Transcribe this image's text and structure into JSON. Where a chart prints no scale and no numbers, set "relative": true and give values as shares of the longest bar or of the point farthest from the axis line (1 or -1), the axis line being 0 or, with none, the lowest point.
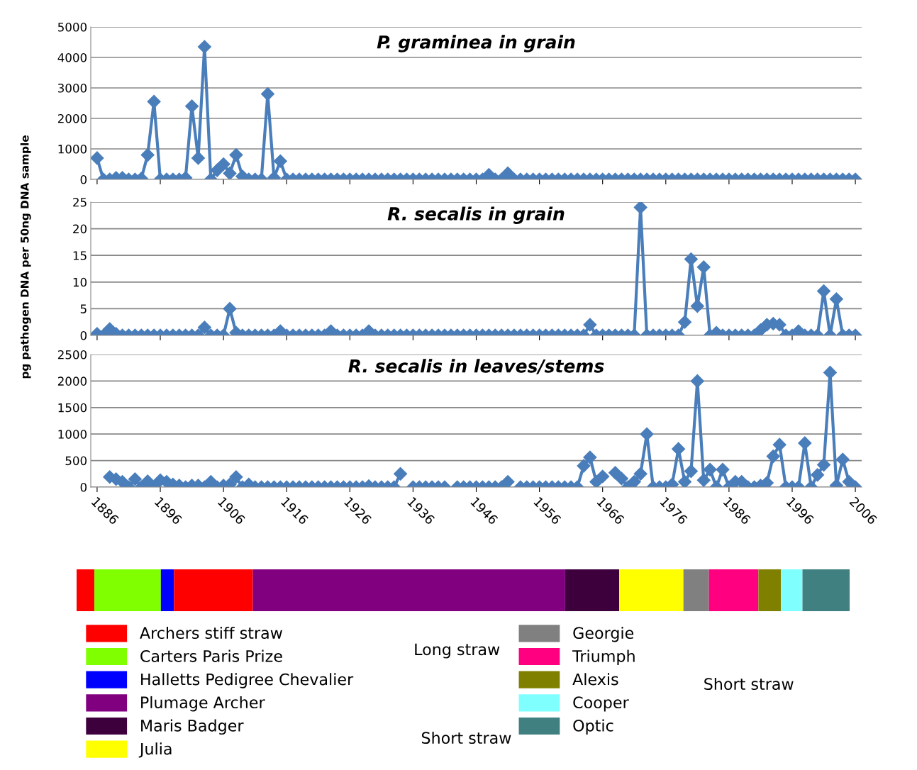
{
  "chart_data": [
    {
      "type": "line",
      "title": "P. graminea in grain",
      "marker": "diamond",
      "line_style": "solid",
      "grid": "y",
      "tick_labels": "y",
      "xlim": [
        1885,
        2007
      ],
      "xticks": [
        1886,
        1896,
        1906,
        1916,
        1926,
        1936,
        1946,
        1956,
        1966,
        1976,
        1986,
        1996,
        2006
      ],
      "ylim": [
        0,
        5000
      ],
      "yticks": [
        0,
        1000,
        2000,
        3000,
        4000,
        5000
      ],
      "series": [
        {
          "color": "#4a7ebb",
          "x": [
            1886,
            1887,
            1888,
            1889,
            1890,
            1891,
            1892,
            1893,
            1894,
            1895,
            1896,
            1897,
            1898,
            1899,
            1900,
            1901,
            1902,
            1903,
            1904,
            1905,
            1906,
            1907,
            1908,
            1909,
            1910,
            1911,
            1912,
            1913,
            1914,
            1915,
            1916,
            1917,
            1918,
            1919,
            1920,
            1921,
            1922,
            1923,
            1924,
            1925,
            1926,
            1927,
            1928,
            1929,
            1930,
            1931,
            1932,
            1933,
            1934,
            1935,
            1936,
            1937,
            1938,
            1939,
            1940,
            1941,
            1942,
            1943,
            1944,
            1945,
            1946,
            1947,
            1948,
            1949,
            1950,
            1951,
            1952,
            1953,
            1954,
            1955,
            1956,
            1957,
            1958,
            1959,
            1960,
            1961,
            1962,
            1963,
            1964,
            1965,
            1966,
            1967,
            1968,
            1969,
            1970,
            1971,
            1972,
            1973,
            1974,
            1975,
            1976,
            1977,
            1978,
            1979,
            1980,
            1981,
            1982,
            1983,
            1984,
            1985,
            1986,
            1987,
            1988,
            1989,
            1990,
            1991,
            1992,
            1993,
            1994,
            1995,
            1996,
            1997,
            1998,
            1999,
            2000,
            2001,
            2002,
            2003,
            2004,
            2005,
            2006
          ],
          "values": [
            700,
            0,
            0,
            50,
            50,
            0,
            0,
            30,
            800,
            2550,
            0,
            0,
            0,
            0,
            50,
            2400,
            700,
            4350,
            0,
            300,
            500,
            200,
            800,
            100,
            0,
            0,
            0,
            2800,
            50,
            600,
            0,
            0,
            0,
            0,
            0,
            0,
            0,
            0,
            0,
            0,
            0,
            0,
            0,
            0,
            0,
            0,
            0,
            0,
            0,
            0,
            0,
            0,
            0,
            0,
            0,
            0,
            0,
            0,
            0,
            0,
            0,
            0,
            150,
            0,
            0,
            200,
            0,
            0,
            0,
            0,
            0,
            0,
            0,
            0,
            0,
            0,
            0,
            0,
            0,
            0,
            0,
            0,
            0,
            0,
            0,
            0,
            0,
            0,
            0,
            0,
            0,
            0,
            0,
            0,
            0,
            0,
            0,
            0,
            0,
            0,
            0,
            0,
            0,
            0,
            0,
            0,
            0,
            0,
            0,
            0,
            0,
            0,
            0,
            0,
            0,
            0,
            0,
            0,
            0,
            0,
            0
          ]
        }
      ]
    },
    {
      "type": "line",
      "title": "R. secalis in grain",
      "ylabel": "pg pathogen DNA per 50ng DNA sample",
      "marker": "diamond",
      "line_style": "solid",
      "grid": "y",
      "tick_labels": "y",
      "xlim": [
        1885,
        2007
      ],
      "xticks": [
        1886,
        1896,
        1906,
        1916,
        1926,
        1936,
        1946,
        1956,
        1966,
        1976,
        1986,
        1996,
        2006
      ],
      "ylim": [
        0,
        25
      ],
      "yticks": [
        0,
        5,
        10,
        15,
        20,
        25
      ],
      "series": [
        {
          "color": "#4a7ebb",
          "x": [
            1886,
            1887,
            1888,
            1889,
            1890,
            1891,
            1892,
            1893,
            1894,
            1895,
            1896,
            1897,
            1898,
            1899,
            1900,
            1901,
            1902,
            1903,
            1904,
            1905,
            1906,
            1907,
            1908,
            1909,
            1910,
            1911,
            1912,
            1913,
            1914,
            1915,
            1916,
            1917,
            1918,
            1919,
            1920,
            1921,
            1922,
            1923,
            1924,
            1925,
            1926,
            1927,
            1928,
            1929,
            1930,
            1931,
            1932,
            1933,
            1934,
            1935,
            1936,
            1937,
            1938,
            1939,
            1940,
            1941,
            1942,
            1943,
            1944,
            1945,
            1946,
            1947,
            1948,
            1949,
            1950,
            1951,
            1952,
            1953,
            1954,
            1955,
            1956,
            1957,
            1958,
            1959,
            1960,
            1961,
            1962,
            1963,
            1964,
            1965,
            1966,
            1967,
            1968,
            1969,
            1970,
            1971,
            1972,
            1973,
            1974,
            1975,
            1976,
            1977,
            1978,
            1979,
            1980,
            1981,
            1982,
            1983,
            1984,
            1985,
            1986,
            1987,
            1988,
            1989,
            1990,
            1991,
            1992,
            1993,
            1994,
            1995,
            1996,
            1997,
            1998,
            1999,
            2000,
            2001,
            2002,
            2003,
            2004,
            2005,
            2006
          ],
          "values": [
            0.3,
            0,
            1.2,
            0.3,
            0,
            0,
            0,
            0,
            0,
            0,
            0,
            0,
            0,
            0,
            0,
            0,
            0,
            1.5,
            0,
            0,
            0,
            5,
            0.5,
            0,
            0,
            0,
            0,
            0,
            0,
            0.8,
            0,
            0,
            0,
            0,
            0,
            0,
            0,
            0.8,
            0,
            0,
            0,
            0,
            0,
            0.8,
            0,
            0,
            0,
            0,
            0,
            0,
            0,
            0,
            0,
            0,
            0,
            0,
            0,
            0,
            0,
            0,
            0,
            0,
            0,
            0,
            0,
            0,
            0,
            0,
            0,
            0,
            0,
            0,
            0,
            0,
            0,
            0,
            0,
            0,
            2,
            0,
            0,
            0,
            0,
            0,
            0,
            0,
            24,
            0,
            0,
            0,
            0,
            0,
            0,
            2.5,
            14.3,
            5.5,
            12.8,
            0,
            0.5,
            0,
            0,
            0,
            0,
            0,
            0,
            1,
            2,
            2.2,
            2,
            0,
            0,
            0.8,
            0,
            0,
            0,
            8.3,
            0,
            6.8,
            0,
            0,
            0
          ]
        }
      ]
    },
    {
      "type": "line",
      "title": "R. secalis in leaves/stems",
      "marker": "diamond",
      "line_style": "solid",
      "grid": "y",
      "xlim": [
        1885,
        2007
      ],
      "xticks": [
        1886,
        1896,
        1906,
        1916,
        1926,
        1936,
        1946,
        1956,
        1966,
        1976,
        1986,
        1996,
        2006
      ],
      "ylim": [
        0,
        2500
      ],
      "yticks": [
        0,
        500,
        1000,
        1500,
        2000,
        2500
      ],
      "series": [
        {
          "color": "#4a7ebb",
          "x": [
            1888,
            1889,
            1890,
            1891,
            1892,
            1893,
            1894,
            1895,
            1896,
            1897,
            1898,
            1899,
            1900,
            1901,
            1902,
            1903,
            1904,
            1905,
            1906,
            1907,
            1908,
            1909,
            1910,
            1911,
            1912,
            1913,
            1914,
            1915,
            1916,
            1917,
            1918,
            1919,
            1920,
            1921,
            1922,
            1923,
            1924,
            1925,
            1926,
            1927,
            1928,
            1929,
            1930,
            1931,
            1932,
            1933,
            1934,
            1935,
            1936,
            1937,
            1938,
            1939,
            1940,
            1941,
            1942,
            1943,
            1944,
            1945,
            1946,
            1947,
            1948,
            1949,
            1950,
            1951,
            1952,
            1953,
            1954,
            1955,
            1956,
            1957,
            1958,
            1959,
            1960,
            1961,
            1962,
            1963,
            1964,
            1965,
            1966,
            1967,
            1968,
            1969,
            1970,
            1971,
            1972,
            1973,
            1974,
            1975,
            1976,
            1977,
            1978,
            1979,
            1980,
            1981,
            1982,
            1983,
            1984,
            1985,
            1986,
            1987,
            1988,
            1989,
            1990,
            1991,
            1992,
            1993,
            1994,
            1995,
            1996,
            1997,
            1998,
            1999,
            2000,
            2001,
            2002,
            2003,
            2004,
            2005,
            2006
          ],
          "values": [
            190,
            150,
            100,
            0,
            150,
            0,
            110,
            0,
            130,
            100,
            50,
            30,
            0,
            30,
            30,
            0,
            100,
            0,
            30,
            50,
            190,
            0,
            50,
            0,
            0,
            0,
            0,
            0,
            0,
            0,
            0,
            0,
            0,
            0,
            0,
            0,
            0,
            0,
            0,
            0,
            0,
            20,
            0,
            0,
            0,
            0,
            250,
            null,
            0,
            0,
            0,
            0,
            0,
            0,
            null,
            0,
            0,
            0,
            0,
            0,
            0,
            0,
            0,
            100,
            null,
            0,
            0,
            0,
            0,
            0,
            0,
            0,
            0,
            0,
            0,
            400,
            560,
            100,
            200,
            null,
            270,
            160,
            0,
            100,
            250,
            1000,
            0,
            0,
            0,
            50,
            720,
            100,
            300,
            2000,
            130,
            330,
            0,
            330,
            0,
            100,
            100,
            0,
            0,
            30,
            80,
            580,
            800,
            0,
            0,
            0,
            830,
            0,
            230,
            420,
            2160,
            30,
            520,
            100,
            0
          ]
        }
      ]
    },
    {
      "type": "bar",
      "orientation": "horizontal",
      "stacked": true,
      "relative": true,
      "legend": "bottom",
      "categories": [
        null
      ],
      "annotations": [
        "Long straw",
        "Short straw",
        "Short straw"
      ],
      "series": [
        {
          "name": "Archers stiff straw",
          "color": "#ff0000",
          "values": [
            0.023
          ]
        },
        {
          "name": "Carters Paris Prize",
          "color": "#80ff00",
          "values": [
            0.086
          ]
        },
        {
          "name": "Halletts Pedigree Chevalier",
          "color": "#0000ff",
          "values": [
            0.017
          ]
        },
        {
          "color": "#ff0000",
          "values": [
            0.102
          ]
        },
        {
          "name": "Plumage Archer",
          "color": "#800080",
          "values": [
            0.404
          ]
        },
        {
          "name": "Maris Badger",
          "color": "#3d003d",
          "values": [
            0.07
          ]
        },
        {
          "name": "Julia",
          "color": "#ffff00",
          "values": [
            0.083
          ]
        },
        {
          "name": "Georgie",
          "color": "#808080",
          "values": [
            0.033
          ]
        },
        {
          "name": "Triumph",
          "color": "#ff0080",
          "values": [
            0.064
          ]
        },
        {
          "name": "Alexis",
          "color": "#808000",
          "values": [
            0.029
          ]
        },
        {
          "name": "Cooper",
          "color": "#80ffff",
          "values": [
            0.028
          ]
        },
        {
          "name": "Optic",
          "color": "#408080",
          "values": [
            0.061
          ]
        }
      ]
    }
  ]
}
